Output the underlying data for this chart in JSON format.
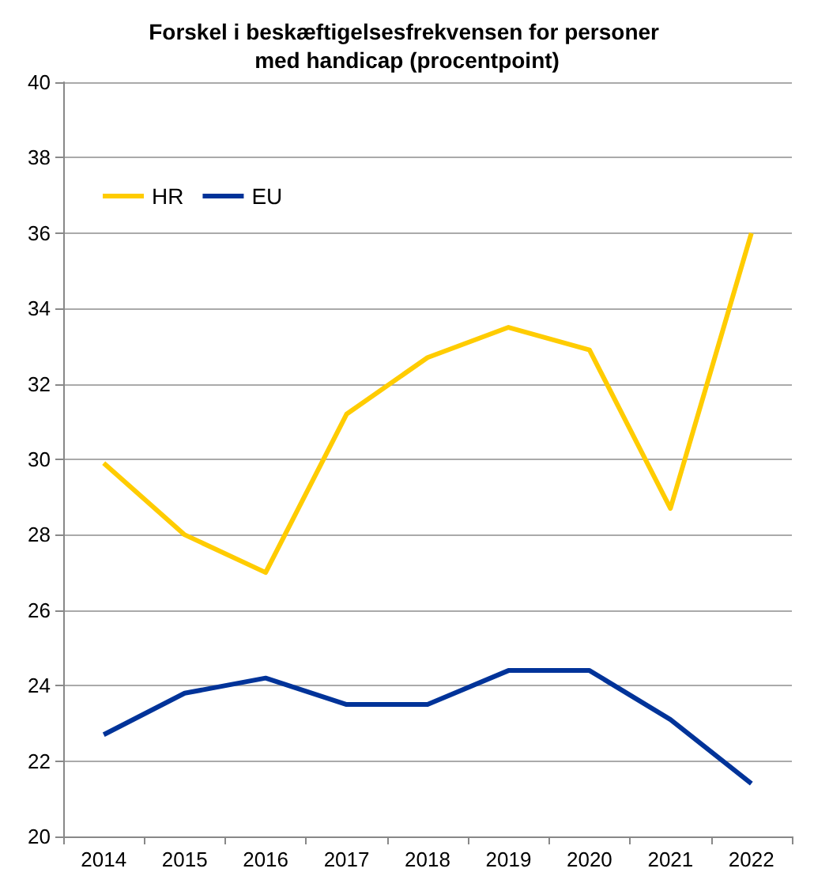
{
  "chart_data": {
    "type": "line",
    "title": "Forskel i beskæftigelsesfrekvensen for personer med handicap (procentpoint)",
    "categories": [
      "2014",
      "2015",
      "2016",
      "2017",
      "2018",
      "2019",
      "2020",
      "2021",
      "2022"
    ],
    "series": [
      {
        "name": "HR",
        "color": "#ffcc00",
        "values": [
          29.9,
          28.0,
          27.0,
          31.2,
          32.7,
          33.5,
          32.9,
          28.7,
          36.0
        ]
      },
      {
        "name": "EU",
        "color": "#003399",
        "values": [
          22.7,
          23.8,
          24.2,
          23.5,
          23.5,
          24.4,
          24.4,
          23.1,
          21.4
        ]
      }
    ],
    "ylim": [
      20,
      40
    ],
    "yticks": [
      20,
      22,
      24,
      26,
      28,
      30,
      32,
      34,
      36,
      38,
      40
    ],
    "grid": "y",
    "legend": "top left",
    "marker": "none",
    "line_style": "solid"
  }
}
